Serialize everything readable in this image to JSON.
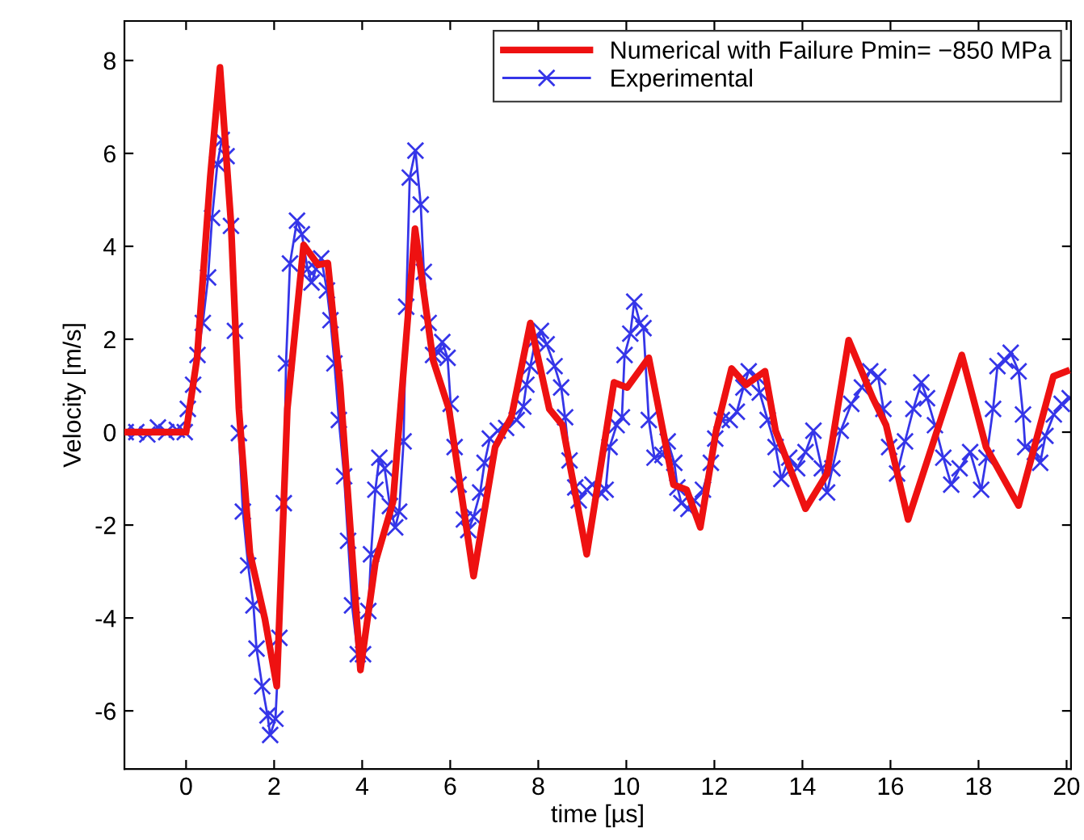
{
  "chart_data": {
    "type": "line",
    "xlabel": "time [µs]",
    "ylabel": "Velocity [m/s]",
    "xlim": [
      -1.4,
      20.1
    ],
    "ylim": [
      -7.25,
      8.85
    ],
    "xticks": [
      0,
      2,
      4,
      6,
      8,
      10,
      12,
      14,
      16,
      18,
      20
    ],
    "yticks": [
      -6,
      -4,
      -2,
      0,
      2,
      4,
      6,
      8
    ],
    "grid": false,
    "legend": "top right",
    "series": [
      {
        "name": "Numerical with Failure Pmin= −850 MPa",
        "color": "#ee1111",
        "marker": "none",
        "x": [
          -1.4,
          0,
          0.25,
          0.55,
          0.77,
          1.02,
          1.2,
          1.45,
          1.79,
          2.06,
          2.3,
          2.67,
          3.0,
          3.22,
          3.5,
          3.96,
          4.3,
          4.7,
          5.2,
          5.61,
          5.97,
          6.53,
          7.02,
          7.39,
          7.82,
          8.25,
          8.55,
          9.1,
          9.72,
          10.02,
          10.51,
          11.07,
          11.37,
          11.68,
          12.04,
          12.39,
          12.72,
          13.15,
          13.39,
          14.07,
          14.56,
          15.05,
          15.6,
          15.9,
          16.4,
          17.62,
          18.17,
          18.91,
          19.7,
          20.0
        ],
        "values": [
          0,
          0,
          1.6,
          5.5,
          7.85,
          4.5,
          0.5,
          -2.6,
          -4.02,
          -5.47,
          0.5,
          4.03,
          3.6,
          3.64,
          1.0,
          -5.12,
          -2.8,
          -1.5,
          4.38,
          1.55,
          0.5,
          -3.1,
          -0.32,
          0.33,
          2.35,
          0.5,
          0.15,
          -2.63,
          1.07,
          0.96,
          1.6,
          -1.13,
          -1.24,
          -2.05,
          0.03,
          1.37,
          1.02,
          1.31,
          0.03,
          -1.65,
          -0.89,
          1.98,
          0.73,
          0.15,
          -1.88,
          1.66,
          -0.32,
          -1.58,
          1.2,
          1.31
        ]
      },
      {
        "name": "Experimental",
        "color": "#3535e8",
        "marker": "cross",
        "x": [
          -1.37,
          -1.13,
          -0.88,
          -0.64,
          -0.45,
          -0.21,
          -0.03,
          0.04,
          0.16,
          0.26,
          0.38,
          0.5,
          0.59,
          0.71,
          0.81,
          0.92,
          1.02,
          1.11,
          1.2,
          1.29,
          1.41,
          1.53,
          1.6,
          1.73,
          1.85,
          1.91,
          2.03,
          2.12,
          2.22,
          2.27,
          2.36,
          2.52,
          2.63,
          2.76,
          2.85,
          2.95,
          3.07,
          3.2,
          3.28,
          3.37,
          3.47,
          3.59,
          3.68,
          3.77,
          3.9,
          4.02,
          4.14,
          4.2,
          4.3,
          4.39,
          4.51,
          4.63,
          4.75,
          4.84,
          4.94,
          5.0,
          5.08,
          5.21,
          5.33,
          5.4,
          5.51,
          5.61,
          5.73,
          5.82,
          5.94,
          6.01,
          6.1,
          6.19,
          6.31,
          6.41,
          6.53,
          6.68,
          6.78,
          6.9,
          7.08,
          7.27,
          7.51,
          7.66,
          7.73,
          7.82,
          7.94,
          8.06,
          8.19,
          8.37,
          8.52,
          8.61,
          8.71,
          8.84,
          8.92,
          9.1,
          9.23,
          9.41,
          9.53,
          9.62,
          9.78,
          9.9,
          9.96,
          10.09,
          10.18,
          10.31,
          10.39,
          10.51,
          10.64,
          10.82,
          10.94,
          11.09,
          11.16,
          11.25,
          11.41,
          11.55,
          11.74,
          11.92,
          12.02,
          12.17,
          12.35,
          12.51,
          12.66,
          12.78,
          12.97,
          13.03,
          13.21,
          13.39,
          13.52,
          13.7,
          13.88,
          14.07,
          14.25,
          14.44,
          14.56,
          14.68,
          14.87,
          15.11,
          15.35,
          15.54,
          15.72,
          15.84,
          15.97,
          16.15,
          16.33,
          16.52,
          16.7,
          16.83,
          17.01,
          17.2,
          17.38,
          17.57,
          17.81,
          18.06,
          18.18,
          18.33,
          18.43,
          18.61,
          18.73,
          18.91,
          19.01,
          19.06,
          19.28,
          19.4,
          19.52,
          19.71,
          19.89,
          20.07
        ],
        "values": [
          0,
          0,
          -0.05,
          0.1,
          0,
          0.05,
          0,
          0.5,
          1.02,
          1.66,
          2.35,
          3.33,
          4.61,
          5.77,
          6.29,
          5.94,
          4.44,
          2.18,
          -0.02,
          -1.71,
          -2.87,
          -3.73,
          -4.66,
          -5.47,
          -6.1,
          -6.52,
          -6.17,
          -4.43,
          -1.53,
          1.48,
          3.63,
          4.55,
          4.26,
          3.51,
          3.22,
          3.51,
          3.74,
          3.05,
          2.41,
          1.48,
          0.26,
          -0.95,
          -2.34,
          -3.73,
          -4.78,
          -4.78,
          -3.85,
          -2.63,
          -1.24,
          -0.55,
          -0.78,
          -1.59,
          -2.05,
          -1.71,
          -0.2,
          2.7,
          5.48,
          6.06,
          4.9,
          3.45,
          2.35,
          1.66,
          1.71,
          1.94,
          1.6,
          0.61,
          -0.32,
          -1.13,
          -1.88,
          -2.11,
          -1.82,
          -1.3,
          -0.66,
          -0.14,
          0.03,
          0.09,
          0.26,
          0.55,
          1.02,
          1.42,
          2.0,
          2.18,
          1.89,
          1.42,
          0.96,
          0.32,
          -0.61,
          -1.19,
          -1.47,
          -1.24,
          -1.13,
          -1.3,
          -1.24,
          -0.32,
          0.15,
          0.32,
          1.66,
          2.12,
          2.81,
          2.35,
          2.24,
          0.26,
          -0.55,
          -0.49,
          -0.2,
          -0.66,
          -1.19,
          -1.53,
          -1.65,
          -1.47,
          -1.24,
          -0.66,
          -0.14,
          0.26,
          0.26,
          0.44,
          0.96,
          1.31,
          1.19,
          0.85,
          0.26,
          -0.32,
          -1.01,
          -0.55,
          -0.78,
          -0.43,
          0.03,
          -0.78,
          -1.3,
          -0.78,
          0.03,
          0.61,
          0.96,
          1.31,
          1.19,
          0.5,
          -0.32,
          -0.89,
          -0.2,
          0.5,
          1.07,
          0.73,
          0.15,
          -0.55,
          -1.13,
          -0.78,
          -0.43,
          -1.24,
          -0.55,
          0.5,
          1.42,
          1.54,
          1.71,
          1.31,
          0.38,
          -0.32,
          -0.43,
          -0.66,
          -0.08,
          0.38,
          0.61,
          0.73
        ]
      }
    ]
  }
}
